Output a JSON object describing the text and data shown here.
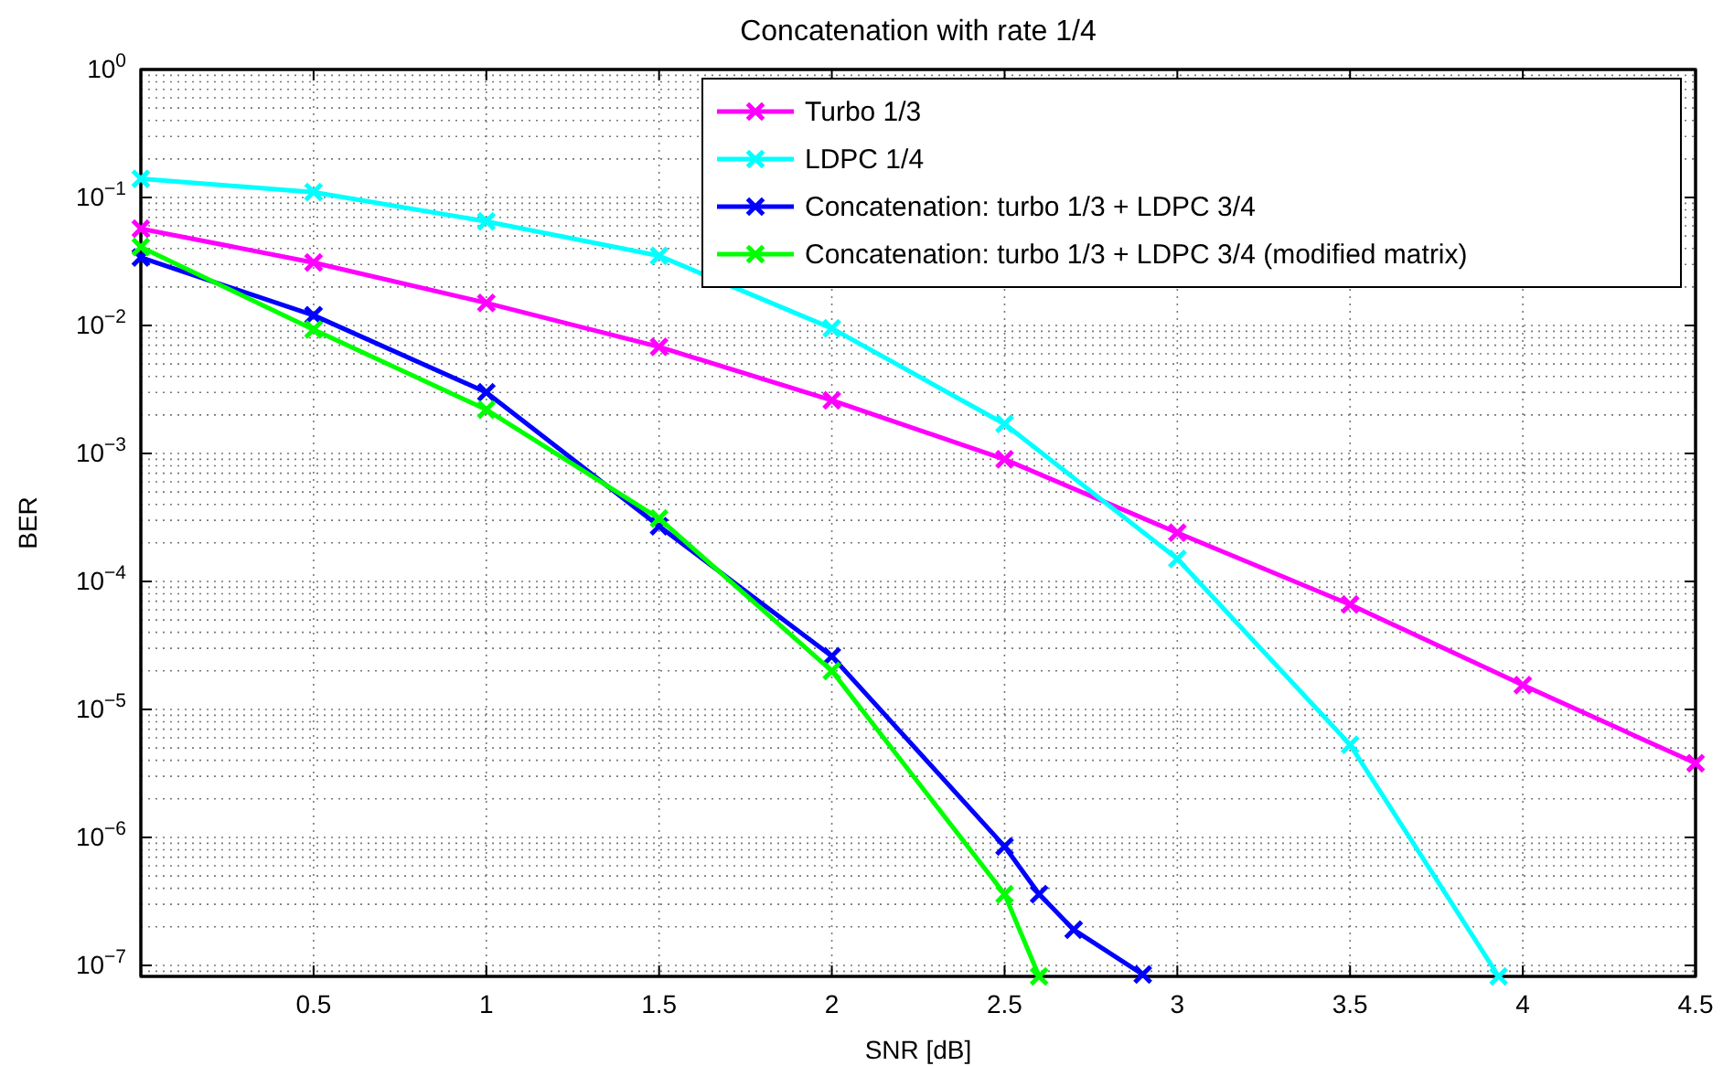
{
  "chart_data": {
    "type": "line",
    "title": "Concatenation with rate 1/4",
    "xlabel": "SNR [dB]",
    "ylabel": "BER",
    "log": "y",
    "grid": true,
    "legend": "top right",
    "marker": "cross",
    "line_style": "solid",
    "xlim": [
      0,
      4.5
    ],
    "xticks": [
      0.5,
      1,
      1.5,
      2,
      2.5,
      3,
      3.5,
      4,
      4.5
    ],
    "ylim": [
      8.2e-08,
      1
    ],
    "yticks": [
      {
        "value": 1e-07,
        "label": "10$^{−7}$"
      },
      {
        "value": 1e-06,
        "label": "10$^{−6}$"
      },
      {
        "value": 1e-05,
        "label": "10$^{−5}$"
      },
      {
        "value": 0.0001,
        "label": "10$^{−4}$"
      },
      {
        "value": 0.001,
        "label": "10$^{−3}$"
      },
      {
        "value": 0.01,
        "label": "10$^{−2}$"
      },
      {
        "value": 0.1,
        "label": "10$^{−1}$"
      },
      {
        "value": 1,
        "label": "10$^{0}$"
      }
    ],
    "series": [
      {
        "name": "Turbo 1/3",
        "color": "#ff00ff",
        "x": [
          0,
          0.5,
          1,
          1.5,
          2,
          2.5,
          3,
          3.5,
          4,
          4.5
        ],
        "values": [
          0.057,
          0.031,
          0.015,
          0.0068,
          0.0026,
          0.0009,
          0.00024,
          6.6e-05,
          1.55e-05,
          3.8e-06
        ]
      },
      {
        "name": "LDPC 1/4",
        "color": "#00ffff",
        "x": [
          0,
          0.5,
          1,
          1.5,
          2,
          2.5,
          3,
          3.5,
          3.93
        ],
        "values": [
          0.14,
          0.11,
          0.065,
          0.035,
          0.0095,
          0.0017,
          0.00015,
          5.3e-06,
          8.2e-08
        ]
      },
      {
        "name": "Concatenation: turbo 1/3 + LDPC 3/4",
        "color": "#0000ff",
        "x": [
          0,
          0.5,
          1,
          1.5,
          2,
          2.5,
          2.6,
          2.7,
          2.9
        ],
        "values": [
          0.034,
          0.012,
          0.003,
          0.00027,
          2.6e-05,
          8.5e-07,
          3.6e-07,
          1.9e-07,
          8.5e-08
        ]
      },
      {
        "name": "Concatenation: turbo 1/3 + LDPC 3/4 (modified matrix)",
        "color": "#00ff00",
        "x": [
          0,
          0.5,
          1,
          1.5,
          2,
          2.5,
          2.6
        ],
        "values": [
          0.041,
          0.0093,
          0.0022,
          0.00031,
          2e-05,
          3.6e-07,
          8.2e-08
        ]
      }
    ]
  }
}
